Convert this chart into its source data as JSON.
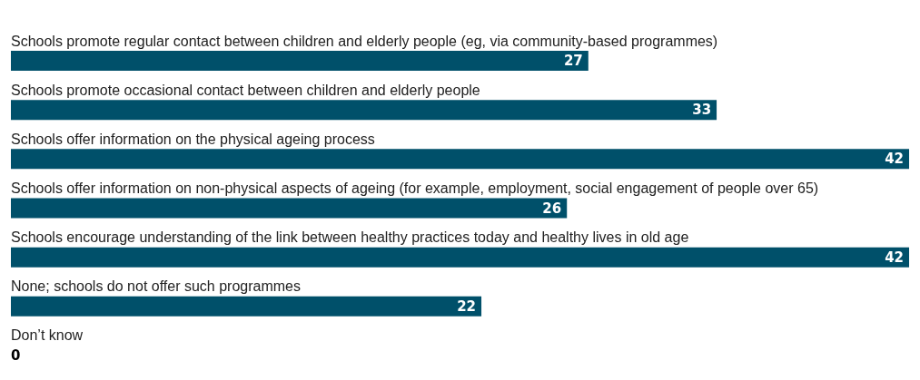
{
  "chart_data": {
    "type": "bar",
    "orientation": "horizontal",
    "categories": [
      "Schools promote regular contact between children and elderly people (eg, via community-based programmes)",
      "Schools promote occasional contact between children and elderly people",
      "Schools offer information on the physical ageing process",
      "Schools offer information on non-physical aspects of ageing (for example, employment, social engagement of people over 65)",
      "Schools encourage understanding of the link between healthy practices today and healthy lives in old age",
      "None; schools do not offer such programmes",
      "Don’t know"
    ],
    "values": [
      27,
      33,
      42,
      26,
      42,
      22,
      0
    ],
    "color": "#00506a",
    "data_labels": true
  }
}
